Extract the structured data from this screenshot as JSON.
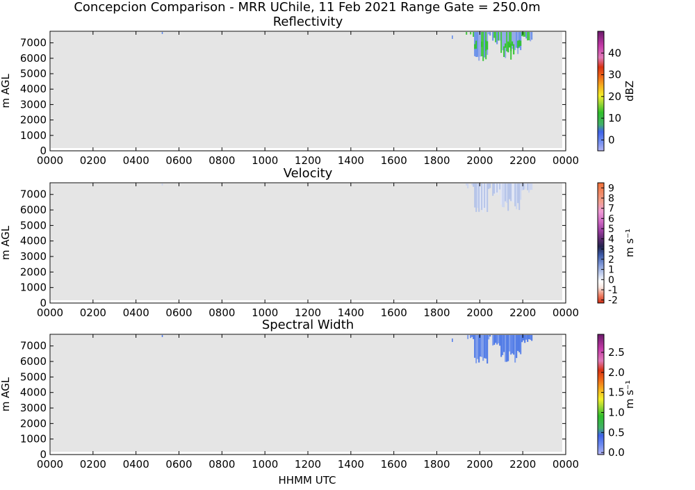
{
  "figure": {
    "suptitle": "Concepcion Comparison - MRR UChile, 11 Feb 2021 Range Gate = 250.0m",
    "xlabel": "HHMM UTC"
  },
  "chart_data": [
    {
      "type": "heatmap",
      "title": "Reflectivity",
      "ylabel": "m AGL",
      "xtick_labels": [
        "0000",
        "0200",
        "0400",
        "0600",
        "0800",
        "1000",
        "1200",
        "1400",
        "1600",
        "1800",
        "2000",
        "2200",
        "0000"
      ],
      "xlim_hours": [
        0,
        24
      ],
      "yticks": [
        0,
        1000,
        2000,
        3000,
        4000,
        5000,
        6000,
        7000
      ],
      "ylim": [
        0,
        7750
      ],
      "colorbar_label": "dBZ",
      "colorbar_range": [
        -5,
        50
      ],
      "colorbar_ticks": [
        "0",
        "10",
        "20",
        "30",
        "40"
      ],
      "colorbar_tick_values": [
        0,
        10,
        20,
        30,
        40
      ],
      "background_color": "#e5e5e5",
      "echo_colors": [
        "#5a86ea",
        "#2ec32b",
        "#86a0e8"
      ]
    },
    {
      "type": "heatmap",
      "title": "Velocity",
      "ylabel": "m AGL",
      "xtick_labels": [
        "0000",
        "0200",
        "0400",
        "0600",
        "0800",
        "1000",
        "1200",
        "1400",
        "1600",
        "1800",
        "2000",
        "2200",
        "0000"
      ],
      "xlim_hours": [
        0,
        24
      ],
      "yticks": [
        0,
        1000,
        2000,
        3000,
        4000,
        5000,
        6000,
        7000
      ],
      "ylim": [
        0,
        7750
      ],
      "colorbar_label": "m s⁻¹",
      "colorbar_range": [
        -2.3,
        9.5
      ],
      "colorbar_ticks": [
        "-2",
        "-1",
        "0",
        "1",
        "2",
        "3",
        "4",
        "5",
        "6",
        "7",
        "8",
        "9"
      ],
      "colorbar_tick_values": [
        -2,
        -1,
        0,
        1,
        2,
        3,
        4,
        5,
        6,
        7,
        8,
        9
      ],
      "background_color": "#e5e5e5",
      "echo_colors": [
        "#c9d4f2",
        "#aebfe9",
        "#e0e6f6"
      ]
    },
    {
      "type": "heatmap",
      "title": "Spectral Width",
      "ylabel": "m AGL",
      "xtick_labels": [
        "0000",
        "0200",
        "0400",
        "0600",
        "0800",
        "1000",
        "1200",
        "1400",
        "1600",
        "1800",
        "2000",
        "2200",
        "0000"
      ],
      "xlim_hours": [
        0,
        24
      ],
      "yticks": [
        0,
        1000,
        2000,
        3000,
        4000,
        5000,
        6000,
        7000
      ],
      "ylim": [
        0,
        7750
      ],
      "colorbar_label": "m s⁻¹",
      "colorbar_range": [
        -0.05,
        2.95
      ],
      "colorbar_ticks": [
        "0.0",
        "0.5",
        "1.0",
        "1.5",
        "2.0",
        "2.5"
      ],
      "colorbar_tick_values": [
        0,
        0.5,
        1.0,
        1.5,
        2.0,
        2.5
      ],
      "background_color": "#e5e5e5",
      "echo_colors": [
        "#4a77ea",
        "#3a6ae6",
        "#6f92ec"
      ]
    }
  ],
  "echo_region": {
    "start_hhmm": [
      19.35,
      22.45
    ],
    "top_m": 7750
  }
}
